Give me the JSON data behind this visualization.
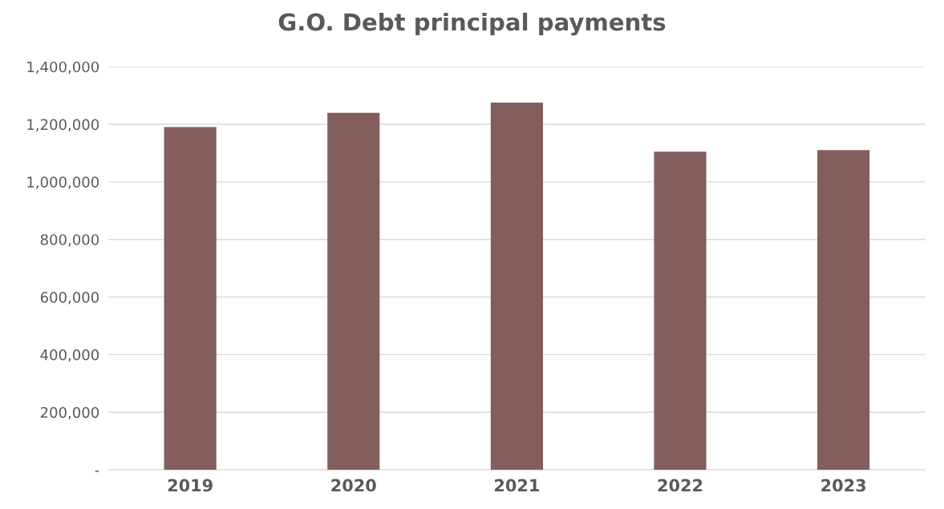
{
  "chart_data": {
    "type": "bar",
    "title": "G.O. Debt principal payments",
    "categories": [
      "2019",
      "2020",
      "2021",
      "2022",
      "2023"
    ],
    "values": [
      1190000,
      1240000,
      1275000,
      1105000,
      1110000
    ],
    "color": "#845e5c",
    "ylim": [
      0,
      1400000
    ],
    "yticks": [
      {
        "value": 0,
        "label": "-"
      },
      {
        "value": 200000,
        "label": "200,000"
      },
      {
        "value": 400000,
        "label": "400,000"
      },
      {
        "value": 600000,
        "label": "600,000"
      },
      {
        "value": 800000,
        "label": "800,000"
      },
      {
        "value": 1000000,
        "label": "1,000,000"
      },
      {
        "value": 1200000,
        "label": "1,200,000"
      },
      {
        "value": 1400000,
        "label": "1,400,000"
      }
    ],
    "grid": "y"
  }
}
